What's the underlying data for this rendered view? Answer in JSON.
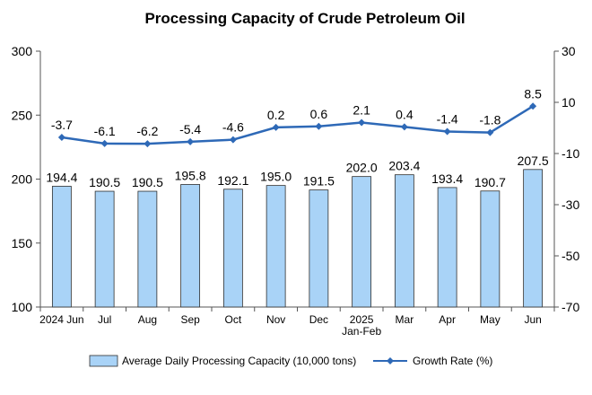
{
  "chart_data": {
    "type": "bar",
    "title": "Processing Capacity of Crude Petroleum Oil",
    "categories": [
      "2024 Jun",
      "Jul",
      "Aug",
      "Sep",
      "Oct",
      "Nov",
      "Dec",
      "2025 Jan-Feb",
      "Mar",
      "Apr",
      "May",
      "Jun"
    ],
    "category_lines": [
      [
        "2024 Jun"
      ],
      [
        "Jul"
      ],
      [
        "Aug"
      ],
      [
        "Sep"
      ],
      [
        "Oct"
      ],
      [
        "Nov"
      ],
      [
        "Dec"
      ],
      [
        "2025",
        "Jan-Feb"
      ],
      [
        "Mar"
      ],
      [
        "Apr"
      ],
      [
        "May"
      ],
      [
        "Jun"
      ]
    ],
    "series": [
      {
        "name": "Average Daily Processing Capacity (10,000 tons)",
        "type": "bar",
        "axis": "left",
        "values": [
          194.4,
          190.5,
          190.5,
          195.8,
          192.1,
          195.0,
          191.5,
          202.0,
          203.4,
          193.4,
          190.7,
          207.5
        ],
        "labels": [
          "194.4",
          "190.5",
          "190.5",
          "195.8",
          "192.1",
          "195.0",
          "191.5",
          "202.0",
          "203.4",
          "193.4",
          "190.7",
          "207.5"
        ]
      },
      {
        "name": "Growth Rate (%)",
        "type": "line",
        "axis": "right",
        "values": [
          -3.7,
          -6.1,
          -6.2,
          -5.4,
          -4.6,
          0.2,
          0.6,
          2.1,
          0.4,
          -1.4,
          -1.8,
          8.5
        ],
        "labels": [
          "-3.7",
          "-6.1",
          "-6.2",
          "-5.4",
          "-4.6",
          "0.2",
          "0.6",
          "2.1",
          "0.4",
          "-1.4",
          "-1.8",
          "8.5"
        ]
      }
    ],
    "y_left": {
      "min": 100,
      "max": 300,
      "ticks": [
        "100",
        "150",
        "200",
        "250",
        "300"
      ]
    },
    "y_right": {
      "min": -70,
      "max": 30,
      "ticks": [
        "-70",
        "-50",
        "-30",
        "-10",
        "10",
        "30"
      ]
    },
    "grid": false,
    "legend_position": "bottom",
    "colors": {
      "bar_fill": "#a9d3f7",
      "bar_stroke": "#2f2f2f",
      "line": "#2e69b7",
      "axis": "#555555"
    }
  }
}
